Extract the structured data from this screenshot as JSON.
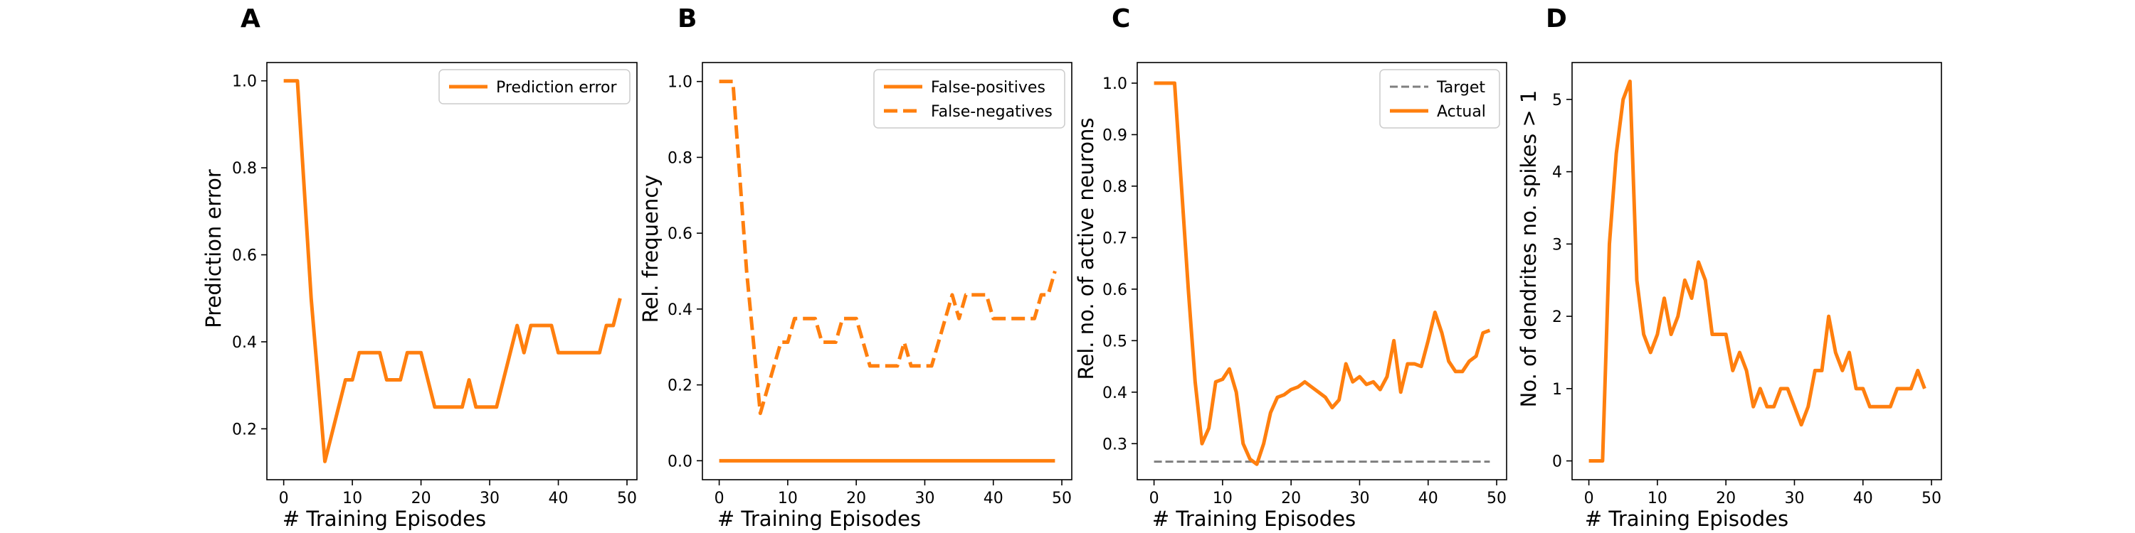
{
  "colors": {
    "primary": "#ff7f0e",
    "target": "#7f7f7f"
  },
  "chart_data": [
    {
      "type": "line",
      "panel": "A",
      "xlabel": "# Training Episodes",
      "ylabel": "Prediction error",
      "xlim": [
        -2.45,
        51.45
      ],
      "ylim": [
        0.083,
        1.042
      ],
      "xticks": [
        0,
        10,
        20,
        30,
        40,
        50
      ],
      "yticks": [
        0.2,
        0.4,
        0.6,
        0.8,
        1.0
      ],
      "ytick_labels": [
        "0.2",
        "0.4",
        "0.6",
        "0.8",
        "1.0"
      ],
      "legend": {
        "position": "top-right"
      },
      "series": [
        {
          "name": "Prediction error",
          "style": "solid",
          "color": "#ff7f0e",
          "x": [
            0,
            1,
            2,
            3,
            4,
            5,
            6,
            7,
            8,
            9,
            10,
            11,
            12,
            13,
            14,
            15,
            16,
            17,
            18,
            19,
            20,
            21,
            22,
            23,
            24,
            25,
            26,
            27,
            28,
            29,
            30,
            31,
            32,
            33,
            34,
            35,
            36,
            37,
            38,
            39,
            40,
            41,
            42,
            43,
            44,
            45,
            46,
            47,
            48,
            49
          ],
          "y": [
            1.0,
            1.0,
            1.0,
            0.75,
            0.5,
            0.3125,
            0.125,
            0.1875,
            0.25,
            0.3125,
            0.3125,
            0.375,
            0.375,
            0.375,
            0.375,
            0.3125,
            0.3125,
            0.3125,
            0.375,
            0.375,
            0.375,
            0.3125,
            0.25,
            0.25,
            0.25,
            0.25,
            0.25,
            0.3125,
            0.25,
            0.25,
            0.25,
            0.25,
            0.3125,
            0.375,
            0.4375,
            0.375,
            0.4375,
            0.4375,
            0.4375,
            0.4375,
            0.375,
            0.375,
            0.375,
            0.375,
            0.375,
            0.375,
            0.375,
            0.4375,
            0.4375,
            0.5
          ]
        }
      ]
    },
    {
      "type": "line",
      "panel": "B",
      "xlabel": "# Training Episodes",
      "ylabel": "Rel. frequency",
      "xlim": [
        -2.45,
        51.45
      ],
      "ylim": [
        -0.05,
        1.05
      ],
      "xticks": [
        0,
        10,
        20,
        30,
        40,
        50
      ],
      "yticks": [
        0.0,
        0.2,
        0.4,
        0.6,
        0.8,
        1.0
      ],
      "ytick_labels": [
        "0.0",
        "0.2",
        "0.4",
        "0.6",
        "0.8",
        "1.0"
      ],
      "legend": {
        "position": "top-right"
      },
      "series": [
        {
          "name": "False-positives",
          "style": "solid",
          "color": "#ff7f0e",
          "x": [
            0,
            1,
            2,
            3,
            4,
            5,
            6,
            7,
            8,
            9,
            10,
            11,
            12,
            13,
            14,
            15,
            16,
            17,
            18,
            19,
            20,
            21,
            22,
            23,
            24,
            25,
            26,
            27,
            28,
            29,
            30,
            31,
            32,
            33,
            34,
            35,
            36,
            37,
            38,
            39,
            40,
            41,
            42,
            43,
            44,
            45,
            46,
            47,
            48,
            49
          ],
          "y": [
            0,
            0,
            0,
            0,
            0,
            0,
            0,
            0,
            0,
            0,
            0,
            0,
            0,
            0,
            0,
            0,
            0,
            0,
            0,
            0,
            0,
            0,
            0,
            0,
            0,
            0,
            0,
            0,
            0,
            0,
            0,
            0,
            0,
            0,
            0,
            0,
            0,
            0,
            0,
            0,
            0,
            0,
            0,
            0,
            0,
            0,
            0,
            0,
            0,
            0
          ]
        },
        {
          "name": "False-negatives",
          "style": "dashed",
          "color": "#ff7f0e",
          "x": [
            0,
            1,
            2,
            3,
            4,
            5,
            6,
            7,
            8,
            9,
            10,
            11,
            12,
            13,
            14,
            15,
            16,
            17,
            18,
            19,
            20,
            21,
            22,
            23,
            24,
            25,
            26,
            27,
            28,
            29,
            30,
            31,
            32,
            33,
            34,
            35,
            36,
            37,
            38,
            39,
            40,
            41,
            42,
            43,
            44,
            45,
            46,
            47,
            48,
            49
          ],
          "y": [
            1.0,
            1.0,
            1.0,
            0.75,
            0.5,
            0.3125,
            0.125,
            0.1875,
            0.25,
            0.3125,
            0.3125,
            0.375,
            0.375,
            0.375,
            0.375,
            0.3125,
            0.3125,
            0.3125,
            0.375,
            0.375,
            0.375,
            0.3125,
            0.25,
            0.25,
            0.25,
            0.25,
            0.25,
            0.3125,
            0.25,
            0.25,
            0.25,
            0.25,
            0.3125,
            0.375,
            0.4375,
            0.375,
            0.4375,
            0.4375,
            0.4375,
            0.4375,
            0.375,
            0.375,
            0.375,
            0.375,
            0.375,
            0.375,
            0.375,
            0.4375,
            0.4375,
            0.5
          ]
        }
      ]
    },
    {
      "type": "line",
      "panel": "C",
      "xlabel": "# Training Episodes",
      "ylabel": "Rel. no. of active neurons",
      "xlim": [
        -2.45,
        51.45
      ],
      "ylim": [
        0.23,
        1.04
      ],
      "xticks": [
        0,
        10,
        20,
        30,
        40,
        50
      ],
      "yticks": [
        0.3,
        0.4,
        0.5,
        0.6,
        0.7,
        0.8,
        0.9,
        1.0
      ],
      "ytick_labels": [
        "0.3",
        "0.4",
        "0.5",
        "0.6",
        "0.7",
        "0.8",
        "0.9",
        "1.0"
      ],
      "legend": {
        "position": "top-right"
      },
      "series": [
        {
          "name": "Target",
          "style": "dashed",
          "color": "#7f7f7f",
          "x": [
            0,
            49
          ],
          "y": [
            0.265,
            0.265
          ]
        },
        {
          "name": "Actual",
          "style": "solid",
          "color": "#ff7f0e",
          "x": [
            0,
            1,
            2,
            3,
            4,
            5,
            6,
            7,
            8,
            9,
            10,
            11,
            12,
            13,
            14,
            15,
            16,
            17,
            18,
            19,
            20,
            21,
            22,
            23,
            24,
            25,
            26,
            27,
            28,
            29,
            30,
            31,
            32,
            33,
            34,
            35,
            36,
            37,
            38,
            39,
            40,
            41,
            42,
            43,
            44,
            45,
            46,
            47,
            48,
            49
          ],
          "y": [
            1.0,
            1.0,
            1.0,
            1.0,
            0.8,
            0.6,
            0.42,
            0.3,
            0.33,
            0.42,
            0.425,
            0.445,
            0.4,
            0.3,
            0.27,
            0.26,
            0.3,
            0.36,
            0.39,
            0.395,
            0.405,
            0.41,
            0.42,
            0.41,
            0.4,
            0.39,
            0.37,
            0.385,
            0.455,
            0.42,
            0.43,
            0.415,
            0.42,
            0.405,
            0.43,
            0.5,
            0.4,
            0.455,
            0.455,
            0.45,
            0.5,
            0.555,
            0.515,
            0.46,
            0.44,
            0.44,
            0.46,
            0.47,
            0.515,
            0.52
          ]
        }
      ]
    },
    {
      "type": "line",
      "panel": "D",
      "xlabel": "# Training Episodes",
      "ylabel": "No. of dendrites no. spikes > 1",
      "xlim": [
        -2.45,
        51.45
      ],
      "ylim": [
        -0.26,
        5.51
      ],
      "xticks": [
        0,
        10,
        20,
        30,
        40,
        50
      ],
      "yticks": [
        0,
        1,
        2,
        3,
        4,
        5
      ],
      "ytick_labels": [
        "0",
        "1",
        "2",
        "3",
        "4",
        "5"
      ],
      "series": [
        {
          "name": "",
          "style": "solid",
          "color": "#ff7f0e",
          "x": [
            0,
            1,
            2,
            3,
            4,
            5,
            6,
            7,
            8,
            9,
            10,
            11,
            12,
            13,
            14,
            15,
            16,
            17,
            18,
            19,
            20,
            21,
            22,
            23,
            24,
            25,
            26,
            27,
            28,
            29,
            30,
            31,
            32,
            33,
            34,
            35,
            36,
            37,
            38,
            39,
            40,
            41,
            42,
            43,
            44,
            45,
            46,
            47,
            48,
            49
          ],
          "y": [
            0,
            0,
            0,
            3.0,
            4.25,
            5.0,
            5.25,
            2.5,
            1.75,
            1.5,
            1.75,
            2.25,
            1.75,
            2.0,
            2.5,
            2.25,
            2.75,
            2.5,
            1.75,
            1.75,
            1.75,
            1.25,
            1.5,
            1.25,
            0.75,
            1.0,
            0.75,
            0.75,
            1.0,
            1.0,
            0.75,
            0.5,
            0.75,
            1.25,
            1.25,
            2.0,
            1.5,
            1.25,
            1.5,
            1.0,
            1.0,
            0.75,
            0.75,
            0.75,
            0.75,
            1.0,
            1.0,
            1.0,
            1.25,
            1.0
          ]
        }
      ]
    }
  ]
}
